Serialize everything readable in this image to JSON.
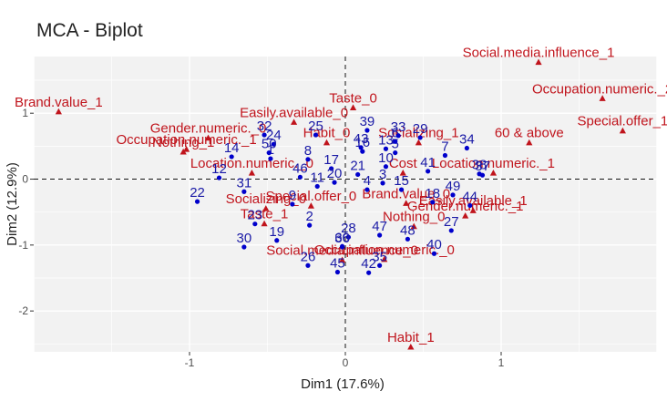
{
  "chart_data": {
    "type": "scatter",
    "title": "MCA - Biplot",
    "xlabel": "Dim1 (17.6%)",
    "ylabel": "Dim2 (12.9%)",
    "xlim": [
      -2.0,
      2.0
    ],
    "ylim": [
      -2.62,
      1.86
    ],
    "x_ticks": [
      -1,
      0,
      1
    ],
    "x_tick_labels": [
      "-1",
      "0",
      "1"
    ],
    "y_ticks": [
      -2,
      -1,
      0,
      1
    ],
    "y_tick_labels": [
      "-2",
      "-1",
      "0",
      "1"
    ],
    "grid": true,
    "reference_lines": {
      "x": 0,
      "y": 0,
      "style": "dashed"
    },
    "colors": {
      "individuals": "#0000cc",
      "variables": "#c0141c",
      "grid": "#ebebeb",
      "panel": "#f2f2f2"
    },
    "individuals": [
      {
        "label": "1",
        "x": -0.48,
        "y": 0.31
      },
      {
        "label": "2",
        "x": -0.23,
        "y": -0.7
      },
      {
        "label": "3",
        "x": 0.24,
        "y": -0.06
      },
      {
        "label": "4",
        "x": 0.14,
        "y": -0.16
      },
      {
        "label": "5",
        "x": 0.32,
        "y": 0.4
      },
      {
        "label": "6",
        "x": 0.32,
        "y": 0.57
      },
      {
        "label": "7",
        "x": 0.64,
        "y": 0.36
      },
      {
        "label": "8",
        "x": -0.24,
        "y": 0.3
      },
      {
        "label": "9",
        "x": -0.34,
        "y": -0.38
      },
      {
        "label": "10",
        "x": 0.26,
        "y": 0.19
      },
      {
        "label": "11",
        "x": -0.18,
        "y": -0.11
      },
      {
        "label": "12",
        "x": -0.81,
        "y": 0.02
      },
      {
        "label": "13",
        "x": 0.26,
        "y": 0.46
      },
      {
        "label": "14",
        "x": -0.73,
        "y": 0.34
      },
      {
        "label": "15",
        "x": 0.36,
        "y": -0.16
      },
      {
        "label": "16",
        "x": 0.11,
        "y": 0.42
      },
      {
        "label": "17",
        "x": -0.09,
        "y": 0.16
      },
      {
        "label": "18",
        "x": 0.56,
        "y": -0.35
      },
      {
        "label": "19",
        "x": -0.44,
        "y": -0.93
      },
      {
        "label": "20",
        "x": -0.07,
        "y": -0.05
      },
      {
        "label": "21",
        "x": 0.08,
        "y": 0.07
      },
      {
        "label": "22",
        "x": -0.95,
        "y": -0.34
      },
      {
        "label": "23",
        "x": -0.58,
        "y": -0.68
      },
      {
        "label": "24",
        "x": -0.46,
        "y": 0.53
      },
      {
        "label": "25",
        "x": -0.19,
        "y": 0.67
      },
      {
        "label": "26",
        "x": -0.24,
        "y": -1.31
      },
      {
        "label": "27",
        "x": 0.68,
        "y": -0.78
      },
      {
        "label": "28",
        "x": 0.02,
        "y": -0.88
      },
      {
        "label": "29",
        "x": 0.48,
        "y": 0.63
      },
      {
        "label": "30",
        "x": -0.65,
        "y": -1.03
      },
      {
        "label": "31",
        "x": -0.65,
        "y": -0.19
      },
      {
        "label": "32",
        "x": -0.52,
        "y": 0.67
      },
      {
        "label": "33",
        "x": 0.34,
        "y": 0.66
      },
      {
        "label": "34",
        "x": 0.78,
        "y": 0.47
      },
      {
        "label": "35",
        "x": 0.22,
        "y": -1.31
      },
      {
        "label": "36",
        "x": -0.02,
        "y": -1.03
      },
      {
        "label": "37",
        "x": 0.88,
        "y": 0.06
      },
      {
        "label": "38",
        "x": 0.86,
        "y": 0.08
      },
      {
        "label": "39",
        "x": 0.14,
        "y": 0.74
      },
      {
        "label": "40",
        "x": 0.57,
        "y": -1.13
      },
      {
        "label": "41",
        "x": 0.53,
        "y": 0.12
      },
      {
        "label": "42",
        "x": 0.15,
        "y": -1.42
      },
      {
        "label": "43",
        "x": 0.1,
        "y": 0.48
      },
      {
        "label": "44",
        "x": 0.8,
        "y": -0.4
      },
      {
        "label": "45",
        "x": -0.05,
        "y": -1.41
      },
      {
        "label": "46",
        "x": -0.29,
        "y": 0.03
      },
      {
        "label": "47",
        "x": 0.22,
        "y": -0.85
      },
      {
        "label": "48",
        "x": 0.4,
        "y": -0.91
      },
      {
        "label": "49",
        "x": 0.69,
        "y": -0.24
      },
      {
        "label": "50",
        "x": -0.49,
        "y": 0.4
      },
      {
        "label": "60",
        "x": -0.02,
        "y": -1.02
      }
    ],
    "variables": [
      {
        "label": "Brand.value_1",
        "x": -1.84,
        "y": 1.02
      },
      {
        "label": "Occupation.numeric._1",
        "x": -1.02,
        "y": 0.45
      },
      {
        "label": "Gender.numeric._0",
        "x": -0.88,
        "y": 0.62
      },
      {
        "label": "Nothing_1",
        "x": -1.04,
        "y": 0.41
      },
      {
        "label": "Location.numeric._0",
        "x": -0.6,
        "y": 0.09
      },
      {
        "label": "Easily.available_0",
        "x": -0.33,
        "y": 0.86
      },
      {
        "label": "Taste_0",
        "x": 0.05,
        "y": 1.08
      },
      {
        "label": "Social.media.influence_1",
        "x": 1.24,
        "y": 1.77
      },
      {
        "label": "Occupation.numeric._2",
        "x": 1.65,
        "y": 1.22
      },
      {
        "label": "Special.offer_1",
        "x": 1.78,
        "y": 0.73
      },
      {
        "label": "Socializing_1",
        "x": 0.47,
        "y": 0.55
      },
      {
        "label": "60 & above",
        "x": 1.18,
        "y": 0.55
      },
      {
        "label": "Habit_0",
        "x": -0.12,
        "y": 0.55
      },
      {
        "label": "Cost",
        "x": 0.37,
        "y": 0.09
      },
      {
        "label": "Location.numeric._1",
        "x": 0.95,
        "y": 0.09
      },
      {
        "label": "Easily.available_1",
        "x": 0.82,
        "y": -0.48
      },
      {
        "label": "Taste_1",
        "x": -0.52,
        "y": -0.68
      },
      {
        "label": "Socializing_0",
        "x": -0.51,
        "y": -0.45
      },
      {
        "label": "Special.offer_0",
        "x": -0.22,
        "y": -0.41
      },
      {
        "label": "Brand.value_0",
        "x": 0.39,
        "y": -0.37
      },
      {
        "label": "Nothing_0",
        "x": 0.44,
        "y": -0.72
      },
      {
        "label": "Social.media.influence_0",
        "x": -0.02,
        "y": -1.23
      },
      {
        "label": "Occupation.numeric._0",
        "x": 0.25,
        "y": -1.22
      },
      {
        "label": "Gender.numeric._1",
        "x": 0.77,
        "y": -0.56
      },
      {
        "label": "Habit_1",
        "x": 0.42,
        "y": -2.55
      }
    ]
  }
}
